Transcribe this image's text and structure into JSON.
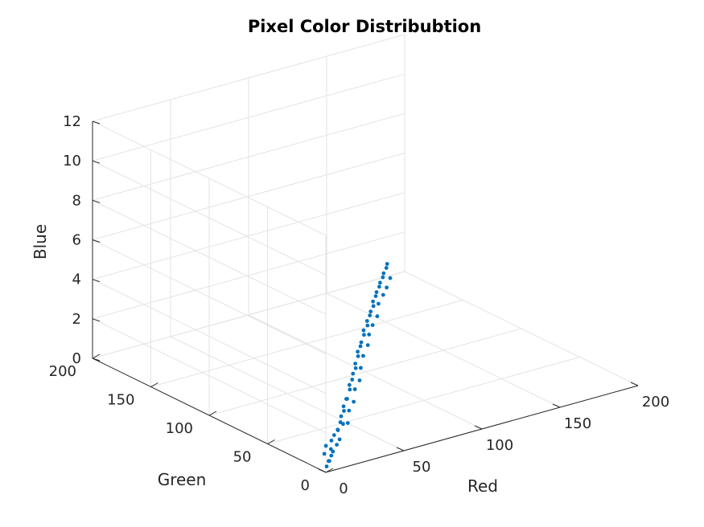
{
  "chart_data": {
    "type": "scatter",
    "projection": "3d",
    "title": "Pixel Color Distribubtion",
    "xlabel": "Red",
    "ylabel": "Green",
    "zlabel": "Blue",
    "xlim": [
      0,
      200
    ],
    "ylim": [
      0,
      200
    ],
    "zlim": [
      0,
      12
    ],
    "xticks": [
      "0",
      "50",
      "100",
      "150",
      "200"
    ],
    "yticks": [
      "0",
      "50",
      "100",
      "150",
      "200"
    ],
    "zticks": [
      "0",
      "2",
      "4",
      "6",
      "8",
      "10",
      "12"
    ],
    "grid": true,
    "marker_color": "#0072BD",
    "points_estimated": [
      [
        2,
        2,
        0.2
      ],
      [
        4,
        3,
        0.4
      ],
      [
        6,
        5,
        0.3
      ],
      [
        5,
        8,
        0.6
      ],
      [
        8,
        6,
        0.5
      ],
      [
        10,
        9,
        0.7
      ],
      [
        12,
        10,
        0.5
      ],
      [
        9,
        12,
        0.8
      ],
      [
        14,
        14,
        0.9
      ],
      [
        16,
        12,
        0.7
      ],
      [
        18,
        17,
        1.0
      ],
      [
        20,
        15,
        0.8
      ],
      [
        22,
        19,
        1.1
      ],
      [
        24,
        22,
        1.0
      ],
      [
        26,
        20,
        1.3
      ],
      [
        28,
        25,
        1.2
      ],
      [
        30,
        27,
        1.4
      ],
      [
        32,
        24,
        1.1
      ],
      [
        34,
        30,
        1.5
      ],
      [
        36,
        33,
        1.6
      ],
      [
        38,
        31,
        1.4
      ],
      [
        40,
        36,
        1.8
      ],
      [
        42,
        38,
        1.7
      ],
      [
        44,
        35,
        1.6
      ],
      [
        46,
        41,
        2.0
      ],
      [
        48,
        44,
        2.1
      ],
      [
        50,
        42,
        1.9
      ],
      [
        52,
        47,
        2.2
      ],
      [
        54,
        49,
        2.4
      ],
      [
        56,
        46,
        2.1
      ],
      [
        58,
        52,
        2.5
      ],
      [
        60,
        55,
        2.6
      ],
      [
        62,
        53,
        2.4
      ],
      [
        64,
        58,
        2.8
      ],
      [
        66,
        61,
        2.9
      ],
      [
        68,
        59,
        2.7
      ],
      [
        70,
        64,
        3.0
      ],
      [
        72,
        66,
        3.1
      ],
      [
        74,
        63,
        3.0
      ],
      [
        76,
        69,
        3.3
      ],
      [
        78,
        72,
        3.4
      ],
      [
        80,
        70,
        3.2
      ],
      [
        82,
        74,
        3.5
      ],
      [
        84,
        77,
        3.6
      ],
      [
        86,
        75,
        3.4
      ],
      [
        88,
        80,
        3.7
      ],
      [
        90,
        82,
        3.8
      ],
      [
        92,
        79,
        3.6
      ],
      [
        94,
        85,
        3.9
      ],
      [
        96,
        88,
        4.0
      ],
      [
        98,
        86,
        3.9
      ],
      [
        100,
        91,
        4.1
      ],
      [
        102,
        93,
        4.2
      ],
      [
        104,
        90,
        4.1
      ],
      [
        106,
        96,
        4.3
      ],
      [
        108,
        98,
        4.4
      ],
      [
        110,
        95,
        4.2
      ],
      [
        112,
        101,
        4.5
      ],
      [
        114,
        103,
        4.6
      ],
      [
        116,
        100,
        4.4
      ],
      [
        118,
        106,
        4.7
      ],
      [
        120,
        108,
        4.8
      ]
    ]
  }
}
